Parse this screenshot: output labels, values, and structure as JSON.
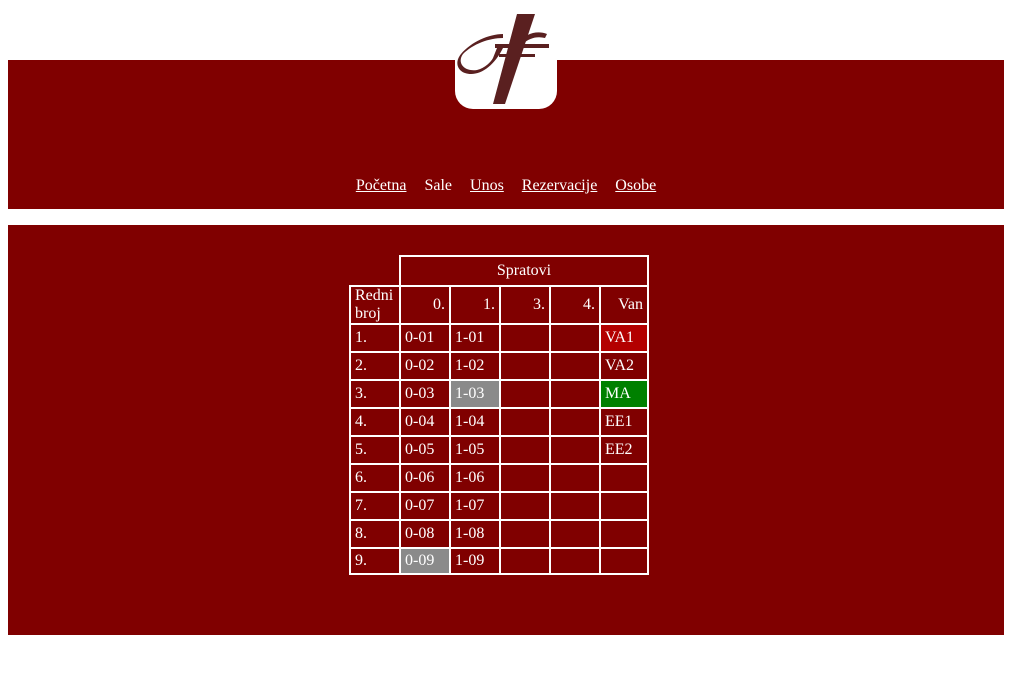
{
  "nav": {
    "items": [
      {
        "label": "Početna",
        "link": true
      },
      {
        "label": "Sale",
        "link": false
      },
      {
        "label": "Unos",
        "link": true
      },
      {
        "label": "Rezervacije",
        "link": true
      },
      {
        "label": "Osobe",
        "link": true
      }
    ]
  },
  "colors": {
    "brand": "#800000",
    "cell_red": "#b30000",
    "cell_green": "#008000",
    "cell_gray": "#8a8a8a",
    "logo": "#5a2020"
  },
  "table": {
    "group_header": "Spratovi",
    "row_header": "Redni broj",
    "columns": [
      "0.",
      "1.",
      "3.",
      "4.",
      "Van"
    ],
    "rows": [
      {
        "n": "1.",
        "cells": [
          "0-01",
          "1-01",
          "",
          "",
          "VA1"
        ],
        "status": [
          "",
          "",
          "",
          "",
          "red"
        ]
      },
      {
        "n": "2.",
        "cells": [
          "0-02",
          "1-02",
          "",
          "",
          "VA2"
        ],
        "status": [
          "",
          "",
          "",
          "",
          ""
        ]
      },
      {
        "n": "3.",
        "cells": [
          "0-03",
          "1-03",
          "",
          "",
          "MA"
        ],
        "status": [
          "",
          "gray",
          "",
          "",
          "green"
        ]
      },
      {
        "n": "4.",
        "cells": [
          "0-04",
          "1-04",
          "",
          "",
          "EE1"
        ],
        "status": [
          "",
          "",
          "",
          "",
          ""
        ]
      },
      {
        "n": "5.",
        "cells": [
          "0-05",
          "1-05",
          "",
          "",
          "EE2"
        ],
        "status": [
          "",
          "",
          "",
          "",
          ""
        ]
      },
      {
        "n": "6.",
        "cells": [
          "0-06",
          "1-06",
          "",
          "",
          ""
        ],
        "status": [
          "",
          "",
          "",
          "",
          ""
        ]
      },
      {
        "n": "7.",
        "cells": [
          "0-07",
          "1-07",
          "",
          "",
          ""
        ],
        "status": [
          "",
          "",
          "",
          "",
          ""
        ]
      },
      {
        "n": "8.",
        "cells": [
          "0-08",
          "1-08",
          "",
          "",
          ""
        ],
        "status": [
          "",
          "",
          "",
          "",
          ""
        ]
      },
      {
        "n": "9.",
        "cells": [
          "0-09",
          "1-09",
          "",
          "",
          ""
        ],
        "status": [
          "gray",
          "",
          "",
          "",
          ""
        ]
      }
    ]
  }
}
